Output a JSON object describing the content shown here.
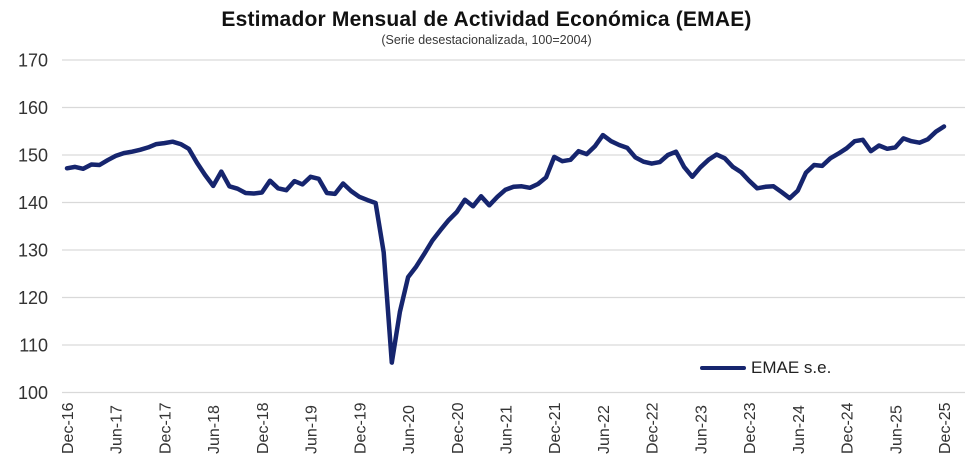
{
  "header": {
    "title": "Estimador Mensual de Actividad Económica (EMAE)",
    "subtitle": "(Serie desestacionalizada, 100=2004)"
  },
  "legend": {
    "label": "EMAE s.e."
  },
  "colors": {
    "line": "#16256e",
    "grid": "#d9d9d9",
    "axis_text": "#333333",
    "title_text": "#111111"
  },
  "chart_data": {
    "type": "line",
    "title": "Estimador Mensual de Actividad Económica (EMAE)",
    "subtitle": "(Serie desestacionalizada, 100=2004)",
    "frequency": "monthly",
    "x_start": "Dec-16",
    "x_end": "Dec-25",
    "x_tick_labels": [
      "Dec-16",
      "Jun-17",
      "Dec-17",
      "Jun-18",
      "Dec-18",
      "Jun-19",
      "Dec-19",
      "Jun-20",
      "Dec-20",
      "Jun-21",
      "Dec-21",
      "Jun-22",
      "Dec-22",
      "Jun-23",
      "Dec-23",
      "Jun-24",
      "Dec-24",
      "Jun-25",
      "Dec-25"
    ],
    "x_tick_every": 6,
    "y_ticks": [
      100,
      110,
      120,
      130,
      140,
      150,
      160,
      170
    ],
    "ylim": [
      100,
      170
    ],
    "grid": "horizontal",
    "legend_entries": [
      "EMAE s.e."
    ],
    "legend_position": "bottom-right",
    "series": [
      {
        "name": "EMAE s.e.",
        "values": [
          147.2,
          147.5,
          147.1,
          148.0,
          147.9,
          148.9,
          149.8,
          150.4,
          150.7,
          151.1,
          151.6,
          152.3,
          152.5,
          152.8,
          152.3,
          151.3,
          148.4,
          145.8,
          143.5,
          146.5,
          143.4,
          142.9,
          142.0,
          141.9,
          142.1,
          144.6,
          143.0,
          142.6,
          144.5,
          143.8,
          145.4,
          145.0,
          142.0,
          141.8,
          144.0,
          142.4,
          141.2,
          140.5,
          139.9,
          129.5,
          106.3,
          117.0,
          124.3,
          126.5,
          129.2,
          132.0,
          134.2,
          136.3,
          138.0,
          140.6,
          139.2,
          141.3,
          139.4,
          141.2,
          142.7,
          143.3,
          143.4,
          143.1,
          143.9,
          145.3,
          149.6,
          148.7,
          149.0,
          150.8,
          150.2,
          151.8,
          154.2,
          152.9,
          152.1,
          151.5,
          149.5,
          148.6,
          148.2,
          148.5,
          150.0,
          150.7,
          147.5,
          145.4,
          147.4,
          149.0,
          150.1,
          149.3,
          147.5,
          146.4,
          144.6,
          143.0,
          143.3,
          143.4,
          142.2,
          140.9,
          142.5,
          146.3,
          147.9,
          147.7,
          149.3,
          150.3,
          151.4,
          152.9,
          153.2,
          150.8,
          152.0,
          151.3,
          151.6,
          153.5,
          152.9,
          152.6,
          153.3,
          154.9,
          156.0
        ]
      }
    ]
  }
}
